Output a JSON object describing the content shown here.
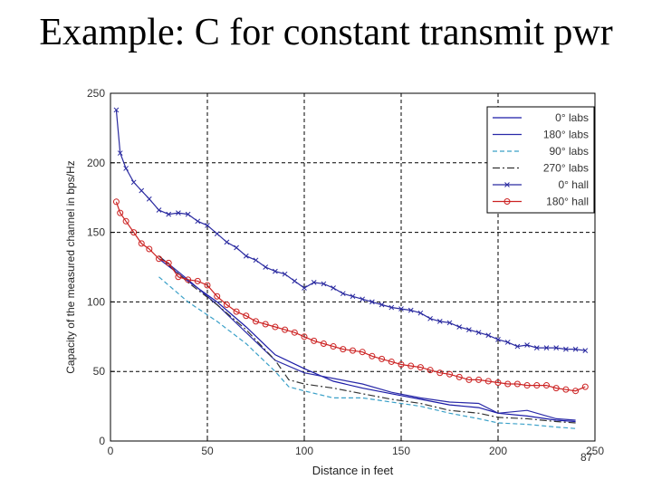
{
  "slide": {
    "title": "Example: C for constant transmit pwr",
    "page_number": "87"
  },
  "chart_data": {
    "type": "line",
    "title": "",
    "xlabel": "Distance in feet",
    "ylabel": "Capacity of the measured channel in bps/Hz",
    "xlim": [
      0,
      250
    ],
    "ylim": [
      0,
      250
    ],
    "xticks": [
      0,
      50,
      100,
      150,
      200,
      250
    ],
    "yticks": [
      0,
      50,
      100,
      150,
      200,
      250
    ],
    "grid": true,
    "legend_position": "top-right",
    "series": [
      {
        "name": "0° labs",
        "color": "#1a1aa6",
        "dash": "solid",
        "marker": "none",
        "x": [
          25,
          40,
          55,
          70,
          85,
          100,
          115,
          130,
          145,
          160,
          175,
          190,
          200,
          215,
          230,
          240
        ],
        "y": [
          131,
          115,
          100,
          82,
          62,
          52,
          43,
          38,
          34,
          30,
          26,
          24,
          20,
          18,
          15,
          14
        ]
      },
      {
        "name": "180° labs",
        "color": "#2a2aa8",
        "dash": "solid",
        "marker": "none",
        "x": [
          25,
          40,
          55,
          70,
          85,
          100,
          115,
          130,
          145,
          160,
          175,
          190,
          200,
          215,
          230,
          240
        ],
        "y": [
          133,
          116,
          98,
          78,
          58,
          49,
          45,
          41,
          35,
          31,
          28,
          27,
          20,
          22,
          16,
          15
        ]
      },
      {
        "name": "90° labs",
        "color": "#3aa0c8",
        "dash": "dashed",
        "marker": "none",
        "x": [
          25,
          40,
          55,
          70,
          85,
          92,
          100,
          115,
          130,
          145,
          160,
          175,
          190,
          200,
          215,
          230,
          240
        ],
        "y": [
          118,
          100,
          86,
          70,
          50,
          39,
          36,
          31,
          31,
          28,
          25,
          20,
          16,
          13,
          12,
          10,
          9
        ]
      },
      {
        "name": "270° labs",
        "color": "#333333",
        "dash": "dashdot",
        "marker": "none",
        "x": [
          25,
          40,
          55,
          70,
          85,
          92,
          100,
          115,
          130,
          145,
          160,
          175,
          190,
          200,
          215,
          230,
          240
        ],
        "y": [
          133,
          114,
          98,
          80,
          58,
          44,
          41,
          38,
          34,
          30,
          27,
          22,
          20,
          17,
          16,
          14,
          13
        ]
      },
      {
        "name": "0° hall",
        "color": "#2a2aa0",
        "dash": "solid",
        "marker": "x",
        "x": [
          3,
          5,
          8,
          12,
          16,
          20,
          25,
          30,
          35,
          40,
          45,
          50,
          55,
          60,
          65,
          70,
          75,
          80,
          85,
          90,
          95,
          100,
          105,
          110,
          115,
          120,
          125,
          130,
          135,
          140,
          145,
          150,
          155,
          160,
          165,
          170,
          175,
          180,
          185,
          190,
          195,
          200,
          205,
          210,
          215,
          220,
          225,
          230,
          235,
          240,
          245
        ],
        "y": [
          238,
          207,
          196,
          186,
          180,
          174,
          166,
          163,
          164,
          163,
          158,
          155,
          149,
          143,
          139,
          133,
          130,
          125,
          122,
          120,
          115,
          110,
          114,
          113,
          110,
          106,
          104,
          102,
          100,
          98,
          96,
          95,
          94,
          92,
          88,
          86,
          85,
          82,
          80,
          78,
          76,
          73,
          71,
          68,
          69,
          67,
          67,
          67,
          66,
          66,
          65
        ]
      },
      {
        "name": "180° hall",
        "color": "#cc2222",
        "dash": "solid",
        "marker": "o",
        "x": [
          3,
          5,
          8,
          12,
          16,
          20,
          25,
          30,
          35,
          40,
          45,
          50,
          55,
          60,
          65,
          70,
          75,
          80,
          85,
          90,
          95,
          100,
          105,
          110,
          115,
          120,
          125,
          130,
          135,
          140,
          145,
          150,
          155,
          160,
          165,
          170,
          175,
          180,
          185,
          190,
          195,
          200,
          205,
          210,
          215,
          220,
          225,
          230,
          235,
          240,
          245
        ],
        "y": [
          172,
          164,
          158,
          150,
          142,
          138,
          131,
          128,
          118,
          116,
          115,
          112,
          104,
          98,
          93,
          90,
          86,
          84,
          82,
          80,
          78,
          75,
          72,
          70,
          68,
          66,
          65,
          64,
          61,
          59,
          57,
          55,
          54,
          53,
          51,
          49,
          48,
          46,
          44,
          44,
          43,
          42,
          41,
          41,
          40,
          40,
          40,
          38,
          37,
          36,
          39
        ]
      }
    ]
  }
}
